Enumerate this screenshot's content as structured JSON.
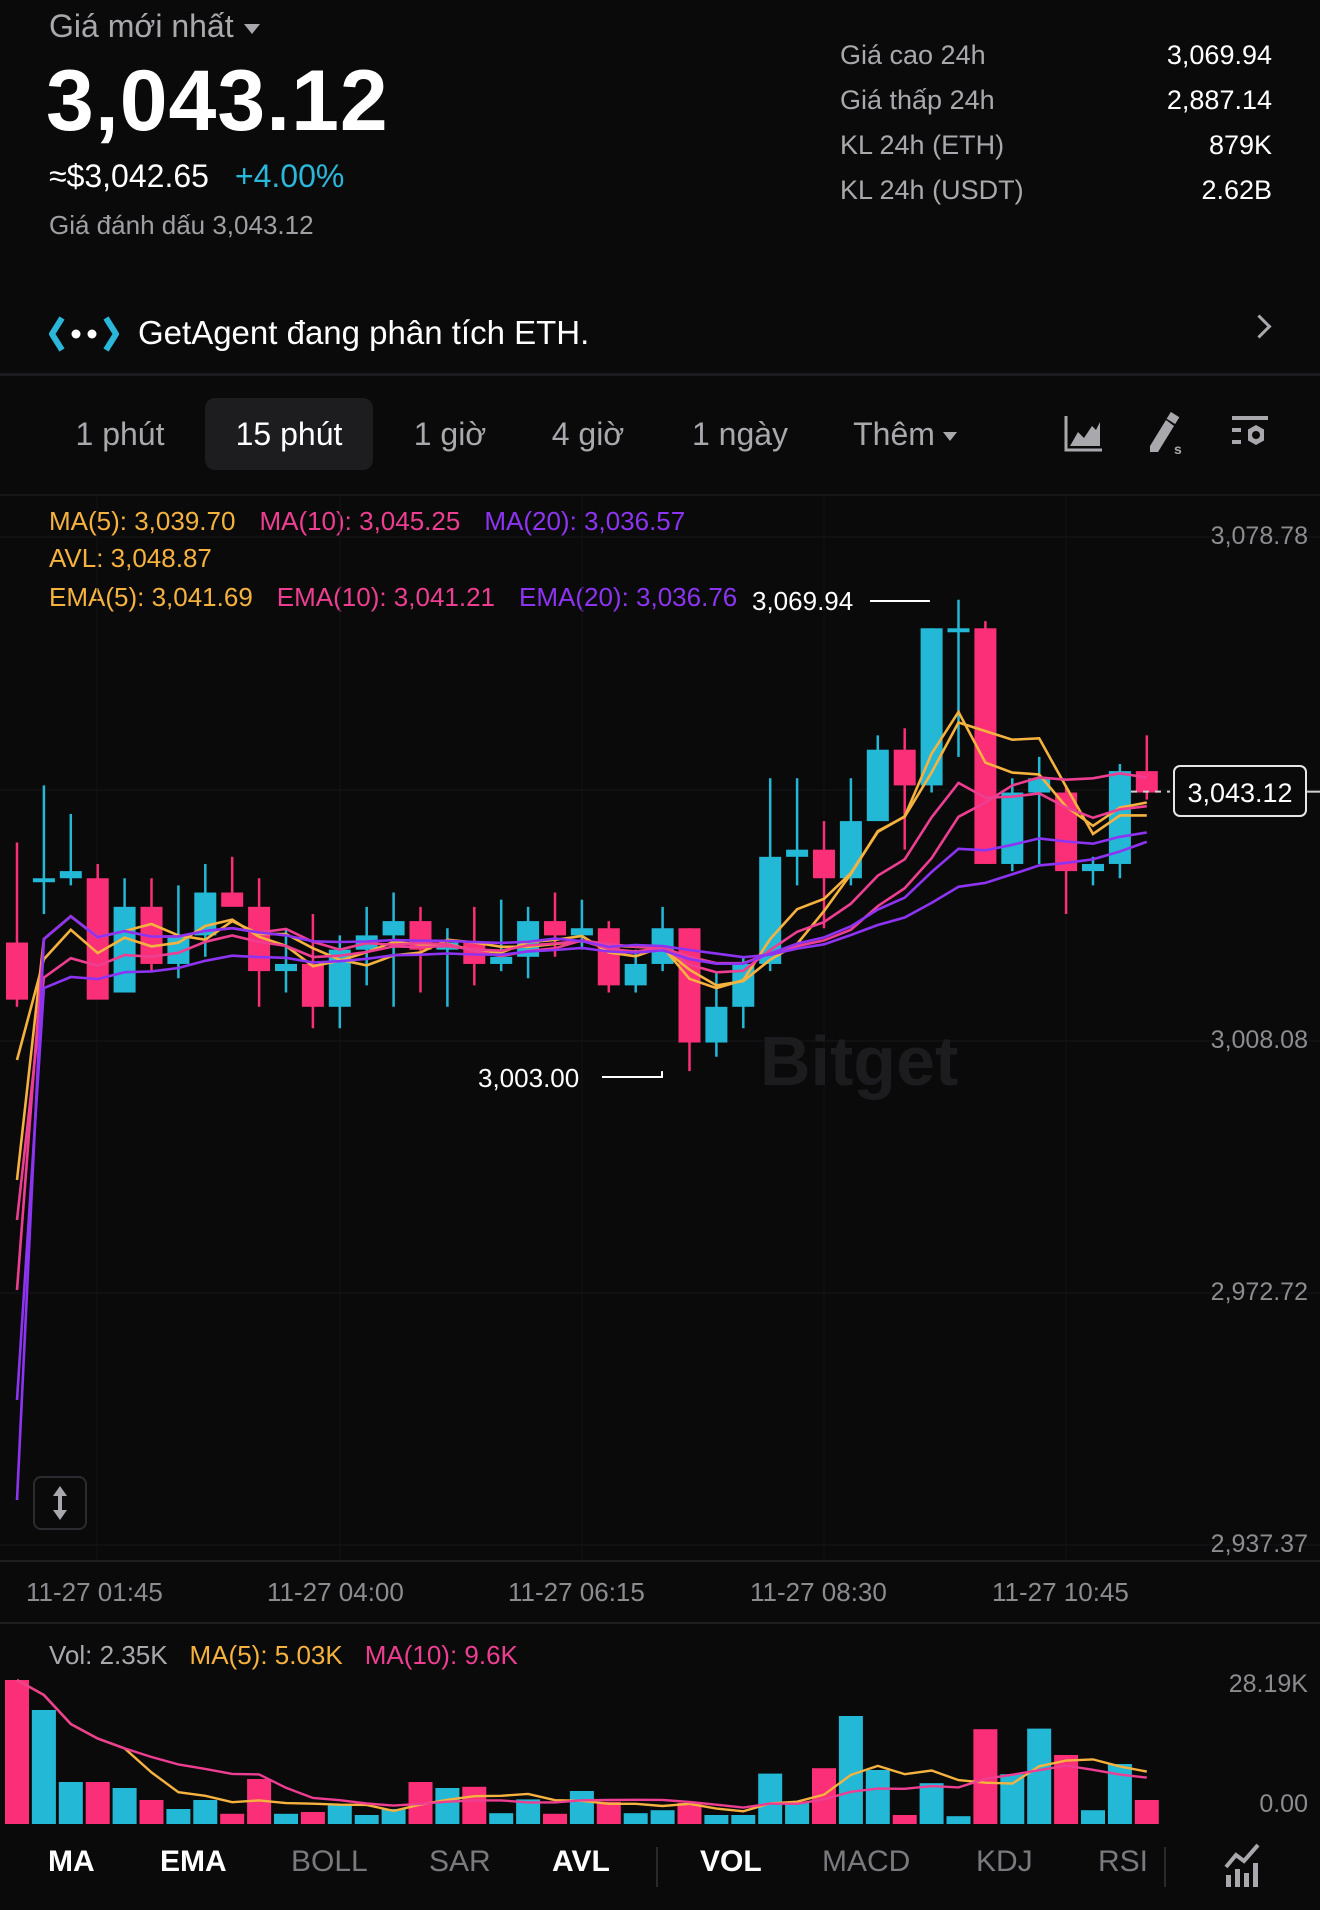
{
  "header": {
    "price_type_label": "Giá mới nhất",
    "last_price": "3,043.12",
    "usd_equiv": "≈$3,042.65",
    "change_pct": "+4.00%",
    "mark_price_label": "Giá đánh dấu 3,043.12"
  },
  "stats": [
    {
      "label": "Giá cao 24h",
      "value": "3,069.94"
    },
    {
      "label": "Giá thấp 24h",
      "value": "2,887.14"
    },
    {
      "label": "KL 24h (ETH)",
      "value": "879K"
    },
    {
      "label": "KL 24h (USDT)",
      "value": "2.62B"
    }
  ],
  "agent_banner": {
    "text": "GetAgent đang phân tích ETH.",
    "icon": "getagent-logo-icon"
  },
  "timeframes": {
    "tabs": [
      {
        "label": "1 phút"
      },
      {
        "label": "15 phút",
        "active": true
      },
      {
        "label": "1 giờ"
      },
      {
        "label": "4 giờ"
      },
      {
        "label": "1 ngày"
      },
      {
        "label": "Thêm"
      }
    ],
    "tools": [
      "chart-type-icon",
      "drawing-tool-icon",
      "indicator-settings-icon"
    ]
  },
  "legend": {
    "ma5": "MA(5): 3,039.70",
    "ma10": "MA(10): 3,045.25",
    "ma20": "MA(20): 3,036.57",
    "avl": "AVL: 3,048.87",
    "ema5": "EMA(5): 3,041.69",
    "ema10": "EMA(10): 3,041.21",
    "ema20": "EMA(20): 3,036.76"
  },
  "colors": {
    "up": "#22b8d6",
    "down": "#fb2e78",
    "ma5": "#f6b23e",
    "ma10": "#ee3e92",
    "ma20": "#8d34f2",
    "accent_change": "#2bb7da"
  },
  "price_axis": [
    "3,078.78",
    "3,008.08",
    "2,972.72",
    "2,937.37"
  ],
  "current_price_tag": "3,043.12",
  "high_marker": "3,069.94",
  "low_marker": "3,003.00",
  "time_axis": [
    "11-27 01:45",
    "11-27 04:00",
    "11-27 06:15",
    "11-27 08:30",
    "11-27 10:45"
  ],
  "volume": {
    "legend_vol": "Vol: 2.35K",
    "legend_ma5": "MA(5): 5.03K",
    "legend_ma10": "MA(10): 9.6K",
    "axis_max": "28.19K",
    "axis_min": "0.00"
  },
  "indicators": {
    "main": [
      {
        "label": "MA",
        "on": true
      },
      {
        "label": "EMA",
        "on": true
      },
      {
        "label": "BOLL",
        "on": false
      },
      {
        "label": "SAR",
        "on": false
      },
      {
        "label": "AVL",
        "on": true
      }
    ],
    "sub": [
      {
        "label": "VOL",
        "on": true
      },
      {
        "label": "MACD",
        "on": false
      },
      {
        "label": "KDJ",
        "on": false
      },
      {
        "label": "RSI",
        "on": false
      }
    ]
  },
  "watermark": "Bitget",
  "chart_data": {
    "type": "candlestick",
    "title": "ETH/USDT 15m",
    "ylim": [
      2937.37,
      3078.78
    ],
    "x_ticks": [
      "11-27 01:45",
      "11-27 04:00",
      "11-27 06:15",
      "11-27 08:30",
      "11-27 10:45"
    ],
    "candles": [
      [
        3022,
        3036,
        3013,
        3014
      ],
      [
        3031,
        3044,
        3026,
        3031
      ],
      [
        3031,
        3040,
        3030,
        3032
      ],
      [
        3031,
        3033,
        3018,
        3014
      ],
      [
        3015,
        3031,
        3017,
        3027
      ],
      [
        3027,
        3031,
        3018,
        3019
      ],
      [
        3019,
        3030,
        3017,
        3023
      ],
      [
        3023,
        3033,
        3020,
        3029
      ],
      [
        3029,
        3034,
        3028,
        3027
      ],
      [
        3027,
        3031,
        3013,
        3018
      ],
      [
        3018,
        3024,
        3015,
        3019
      ],
      [
        3019,
        3026,
        3010,
        3013
      ],
      [
        3013,
        3023,
        3010,
        3021
      ],
      [
        3021,
        3027,
        3016,
        3023
      ],
      [
        3023,
        3029,
        3013,
        3025
      ],
      [
        3025,
        3027,
        3015,
        3021
      ],
      [
        3021,
        3024,
        3013,
        3022
      ],
      [
        3022,
        3027,
        3016,
        3019
      ],
      [
        3019,
        3028,
        3018,
        3020
      ],
      [
        3020,
        3027,
        3017,
        3025
      ],
      [
        3025,
        3029,
        3020,
        3023
      ],
      [
        3023,
        3028,
        3021,
        3024
      ],
      [
        3024,
        3025,
        3015,
        3016
      ],
      [
        3016,
        3021,
        3015,
        3019
      ],
      [
        3019,
        3027,
        3018,
        3024
      ],
      [
        3024,
        3024,
        3004,
        3008
      ],
      [
        3008,
        3018,
        3006,
        3013
      ],
      [
        3013,
        3020,
        3010,
        3019
      ],
      [
        3019,
        3045,
        3018,
        3034
      ],
      [
        3034,
        3045,
        3030,
        3035
      ],
      [
        3035,
        3039,
        3024,
        3031
      ],
      [
        3031,
        3045,
        3030,
        3039
      ],
      [
        3039,
        3051,
        3040,
        3049
      ],
      [
        3049,
        3052,
        3035,
        3044
      ],
      [
        3044,
        3066,
        3043,
        3066
      ],
      [
        3066,
        3070,
        3048,
        3066
      ],
      [
        3066,
        3067,
        3033,
        3033
      ],
      [
        3033,
        3045,
        3032,
        3043
      ],
      [
        3043,
        3048,
        3033,
        3045
      ],
      [
        3043,
        3044,
        3026,
        3032
      ],
      [
        3032,
        3034,
        3030,
        3033
      ],
      [
        3033,
        3047,
        3031,
        3046
      ],
      [
        3046,
        3051,
        3042,
        3043
      ]
    ],
    "volume_max": 28190
  }
}
